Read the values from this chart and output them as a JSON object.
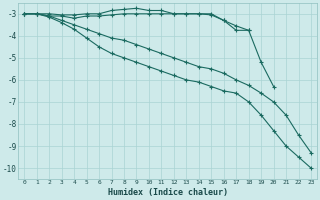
{
  "xlabel": "Humidex (Indice chaleur)",
  "ylabel": "",
  "bg_color": "#ceeaea",
  "grid_color": "#aad4d4",
  "line_color": "#1a6a60",
  "xlim": [
    -0.5,
    23.5
  ],
  "ylim": [
    -10.5,
    -2.5
  ],
  "yticks": [
    -3,
    -4,
    -5,
    -6,
    -7,
    -8,
    -9,
    -10
  ],
  "xticks": [
    0,
    1,
    2,
    3,
    4,
    5,
    6,
    7,
    8,
    9,
    10,
    11,
    12,
    13,
    14,
    15,
    16,
    17,
    18,
    19,
    20,
    21,
    22,
    23
  ],
  "lines": [
    {
      "x": [
        0,
        1,
        2,
        3,
        4,
        5,
        6,
        7,
        8,
        9,
        10,
        11,
        12,
        13,
        14,
        15,
        16,
        17,
        18
      ],
      "y": [
        -3.0,
        -3.0,
        -3.0,
        -3.05,
        -3.05,
        -3.0,
        -3.0,
        -2.85,
        -2.8,
        -2.75,
        -2.85,
        -2.85,
        -3.0,
        -3.0,
        -3.0,
        -3.05,
        -3.3,
        -3.75,
        -3.75
      ]
    },
    {
      "x": [
        0,
        1,
        2,
        3,
        4,
        5,
        6,
        7,
        8,
        9,
        10,
        11,
        12,
        13,
        14,
        15,
        16,
        17,
        18,
        19,
        20
      ],
      "y": [
        -3.0,
        -3.0,
        -3.1,
        -3.1,
        -3.2,
        -3.1,
        -3.1,
        -3.05,
        -3.0,
        -3.0,
        -3.0,
        -3.0,
        -3.0,
        -3.0,
        -3.0,
        -3.0,
        -3.3,
        -3.55,
        -3.75,
        -5.2,
        -6.3
      ]
    },
    {
      "x": [
        0,
        1,
        2,
        3,
        4,
        5,
        6,
        7,
        8,
        9,
        10,
        11,
        12,
        13,
        14,
        15,
        16,
        17,
        18,
        19,
        20,
        21,
        22,
        23
      ],
      "y": [
        -3.0,
        -3.0,
        -3.1,
        -3.3,
        -3.5,
        -3.7,
        -3.9,
        -4.1,
        -4.2,
        -4.4,
        -4.6,
        -4.8,
        -5.0,
        -5.2,
        -5.4,
        -5.5,
        -5.7,
        -6.0,
        -6.25,
        -6.6,
        -7.0,
        -7.6,
        -8.5,
        -9.3
      ]
    },
    {
      "x": [
        0,
        1,
        2,
        3,
        4,
        5,
        6,
        7,
        8,
        9,
        10,
        11,
        12,
        13,
        14,
        15,
        16,
        17,
        18,
        19,
        20,
        21,
        22,
        23
      ],
      "y": [
        -3.0,
        -3.0,
        -3.15,
        -3.4,
        -3.7,
        -4.1,
        -4.5,
        -4.8,
        -5.0,
        -5.2,
        -5.4,
        -5.6,
        -5.8,
        -6.0,
        -6.1,
        -6.3,
        -6.5,
        -6.6,
        -7.0,
        -7.6,
        -8.3,
        -9.0,
        -9.5,
        -10.0
      ]
    }
  ]
}
